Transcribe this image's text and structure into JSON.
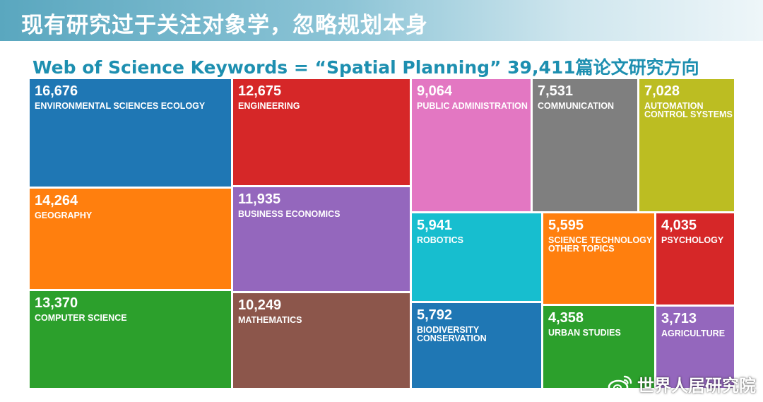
{
  "header": {
    "title": "现有研究过于关注对象学，忽略规划本身",
    "subtitle": "Web of Science Keywords = “Spatial Planning” 39,411篇论文研究方向"
  },
  "watermark": {
    "text": "世界人居研究院",
    "icon": "weibo-icon"
  },
  "chart_data": {
    "type": "treemap",
    "title": "",
    "items": [
      {
        "value": 16676,
        "value_label": "16,676",
        "label": "ENVIRONMENTAL SCIENCES ECOLOGY",
        "color": "#1f77b4"
      },
      {
        "value": 14264,
        "value_label": "14,264",
        "label": "GEOGRAPHY",
        "color": "#ff7f0e"
      },
      {
        "value": 13370,
        "value_label": "13,370",
        "label": "COMPUTER SCIENCE",
        "color": "#2ca02c"
      },
      {
        "value": 12675,
        "value_label": "12,675",
        "label": "ENGINEERING",
        "color": "#d62728"
      },
      {
        "value": 11935,
        "value_label": "11,935",
        "label": "BUSINESS ECONOMICS",
        "color": "#9467bd"
      },
      {
        "value": 10249,
        "value_label": "10,249",
        "label": "MATHEMATICS",
        "color": "#8c564b"
      },
      {
        "value": 9064,
        "value_label": "9,064",
        "label": "PUBLIC ADMINISTRATION",
        "color": "#e377c2"
      },
      {
        "value": 7531,
        "value_label": "7,531",
        "label": "COMMUNICATION",
        "color": "#7f7f7f"
      },
      {
        "value": 7028,
        "value_label": "7,028",
        "label": "AUTOMATION\nCONTROL SYSTEMS",
        "color": "#bcbd22"
      },
      {
        "value": 5941,
        "value_label": "5,941",
        "label": "ROBOTICS",
        "color": "#17becf"
      },
      {
        "value": 5792,
        "value_label": "5,792",
        "label": "BIODIVERSITY\nCONSERVATION",
        "color": "#1f77b4"
      },
      {
        "value": 5595,
        "value_label": "5,595",
        "label": "SCIENCE TECHNOLOGY\nOTHER TOPICS",
        "color": "#ff7f0e"
      },
      {
        "value": 4358,
        "value_label": "4,358",
        "label": "URBAN STUDIES",
        "color": "#2ca02c"
      },
      {
        "value": 4035,
        "value_label": "4,035",
        "label": "PSYCHOLOGY",
        "color": "#d62728"
      },
      {
        "value": 3713,
        "value_label": "3,713",
        "label": "AGRICULTURE",
        "color": "#9467bd"
      }
    ]
  }
}
